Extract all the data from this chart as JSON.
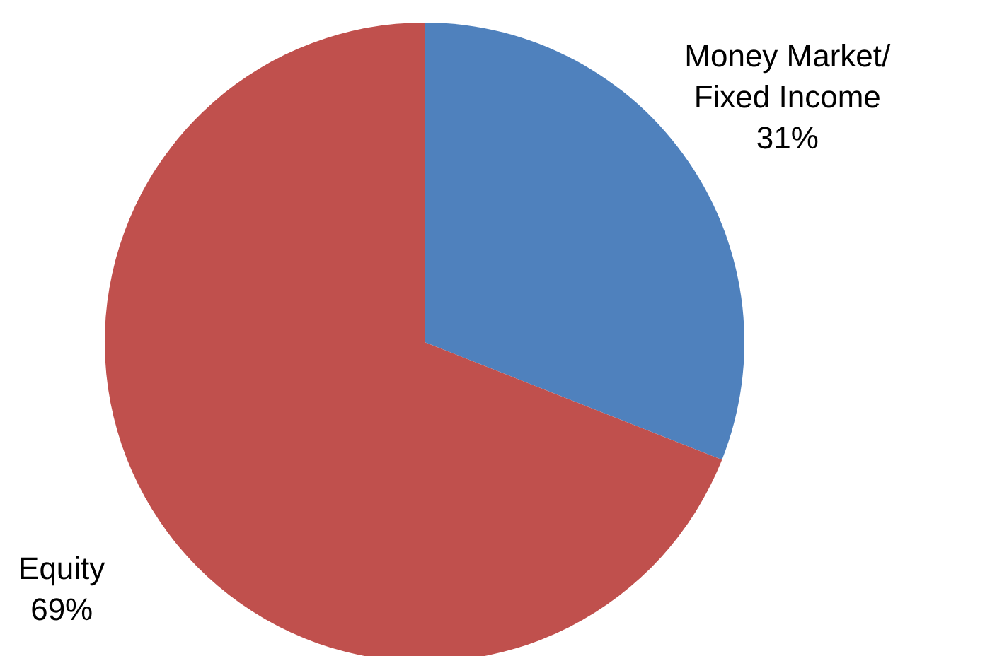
{
  "chart_data": {
    "type": "pie",
    "categories": [
      "Money Market/Fixed Income",
      "Equity"
    ],
    "values": [
      31,
      69
    ],
    "colors": [
      "#4f81bd",
      "#c0504d"
    ],
    "value_labels": [
      "31%",
      "69%"
    ],
    "legend": false
  }
}
